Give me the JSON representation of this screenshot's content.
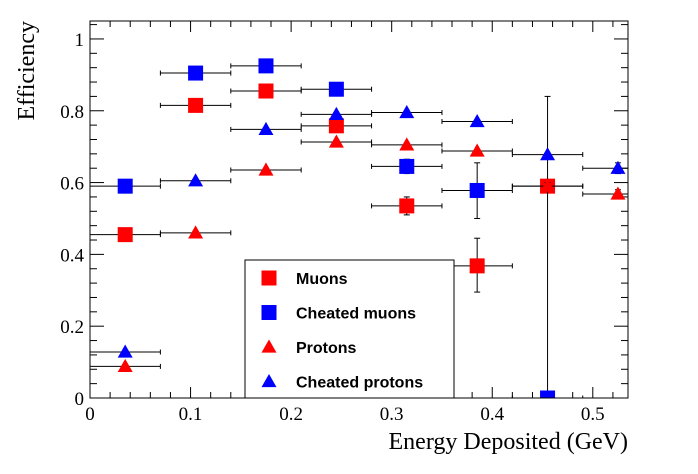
{
  "chart_data": {
    "type": "scatter",
    "title": "",
    "xlabel": "Energy Deposited (GeV)",
    "ylabel": "Efficiency",
    "xlim": [
      0,
      0.535
    ],
    "ylim": [
      0,
      1.05
    ],
    "x_ticks": [
      {
        "value": 0,
        "label": "0"
      },
      {
        "value": 0.1,
        "label": "0.1"
      },
      {
        "value": 0.2,
        "label": "0.2"
      },
      {
        "value": 0.3,
        "label": "0.3"
      },
      {
        "value": 0.4,
        "label": "0.4"
      },
      {
        "value": 0.5,
        "label": "0.5"
      }
    ],
    "y_ticks": [
      {
        "value": 0,
        "label": "0"
      },
      {
        "value": 0.2,
        "label": "0.2"
      },
      {
        "value": 0.4,
        "label": "0.4"
      },
      {
        "value": 0.6,
        "label": "0.6"
      },
      {
        "value": 0.8,
        "label": "0.8"
      },
      {
        "value": 1,
        "label": "1"
      }
    ],
    "grid": false,
    "legend": {
      "position": "bottom-center"
    },
    "series": [
      {
        "name": "Muons",
        "marker": "square",
        "color": "#ff0000",
        "points": [
          {
            "x": 0.035,
            "xlo": 0.0,
            "xhi": 0.07,
            "y": 0.455,
            "ylo": 0.45,
            "yhi": 0.46
          },
          {
            "x": 0.105,
            "xlo": 0.07,
            "xhi": 0.14,
            "y": 0.815,
            "ylo": 0.81,
            "yhi": 0.82
          },
          {
            "x": 0.175,
            "xlo": 0.14,
            "xhi": 0.21,
            "y": 0.855,
            "ylo": 0.85,
            "yhi": 0.86
          },
          {
            "x": 0.245,
            "xlo": 0.21,
            "xhi": 0.28,
            "y": 0.758,
            "ylo": 0.745,
            "yhi": 0.77
          },
          {
            "x": 0.315,
            "xlo": 0.28,
            "xhi": 0.35,
            "y": 0.535,
            "ylo": 0.51,
            "yhi": 0.56
          },
          {
            "x": 0.385,
            "xlo": 0.35,
            "xhi": 0.42,
            "y": 0.368,
            "ylo": 0.295,
            "yhi": 0.445
          },
          {
            "x": 0.455,
            "xlo": 0.42,
            "xhi": 0.49,
            "y": 0.59,
            "ylo": 0.575,
            "yhi": 0.605
          }
        ]
      },
      {
        "name": "Cheated muons",
        "marker": "square",
        "color": "#0000ff",
        "points": [
          {
            "x": 0.035,
            "xlo": 0.0,
            "xhi": 0.07,
            "y": 0.59,
            "ylo": 0.585,
            "yhi": 0.595
          },
          {
            "x": 0.105,
            "xlo": 0.07,
            "xhi": 0.14,
            "y": 0.905,
            "ylo": 0.9,
            "yhi": 0.91
          },
          {
            "x": 0.175,
            "xlo": 0.14,
            "xhi": 0.21,
            "y": 0.925,
            "ylo": 0.92,
            "yhi": 0.93
          },
          {
            "x": 0.245,
            "xlo": 0.21,
            "xhi": 0.28,
            "y": 0.86,
            "ylo": 0.85,
            "yhi": 0.87
          },
          {
            "x": 0.315,
            "xlo": 0.28,
            "xhi": 0.35,
            "y": 0.645,
            "ylo": 0.625,
            "yhi": 0.665
          },
          {
            "x": 0.385,
            "xlo": 0.35,
            "xhi": 0.42,
            "y": 0.578,
            "ylo": 0.5,
            "yhi": 0.655
          },
          {
            "x": 0.455,
            "xlo": 0.42,
            "xhi": 0.49,
            "y": 0.0,
            "ylo": 0.0,
            "yhi": 0.84
          }
        ]
      },
      {
        "name": "Protons",
        "marker": "triangle",
        "color": "#ff0000",
        "points": [
          {
            "x": 0.035,
            "xlo": 0.0,
            "xhi": 0.07,
            "y": 0.088,
            "ylo": 0.083,
            "yhi": 0.093
          },
          {
            "x": 0.105,
            "xlo": 0.07,
            "xhi": 0.14,
            "y": 0.46,
            "ylo": 0.455,
            "yhi": 0.465
          },
          {
            "x": 0.175,
            "xlo": 0.14,
            "xhi": 0.21,
            "y": 0.635,
            "ylo": 0.63,
            "yhi": 0.64
          },
          {
            "x": 0.245,
            "xlo": 0.21,
            "xhi": 0.28,
            "y": 0.713,
            "ylo": 0.708,
            "yhi": 0.718
          },
          {
            "x": 0.315,
            "xlo": 0.28,
            "xhi": 0.35,
            "y": 0.705,
            "ylo": 0.7,
            "yhi": 0.71
          },
          {
            "x": 0.385,
            "xlo": 0.35,
            "xhi": 0.42,
            "y": 0.688,
            "ylo": 0.68,
            "yhi": 0.696
          },
          {
            "x": 0.455,
            "xlo": 0.42,
            "xhi": 0.49,
            "y": 0.59,
            "ylo": 0.58,
            "yhi": 0.6
          },
          {
            "x": 0.525,
            "xlo": 0.49,
            "xhi": 0.56,
            "y": 0.568,
            "ylo": 0.555,
            "yhi": 0.58
          }
        ]
      },
      {
        "name": "Cheated protons",
        "marker": "triangle",
        "color": "#0000ff",
        "points": [
          {
            "x": 0.035,
            "xlo": 0.0,
            "xhi": 0.07,
            "y": 0.128,
            "ylo": 0.123,
            "yhi": 0.133
          },
          {
            "x": 0.105,
            "xlo": 0.07,
            "xhi": 0.14,
            "y": 0.605,
            "ylo": 0.6,
            "yhi": 0.61
          },
          {
            "x": 0.175,
            "xlo": 0.14,
            "xhi": 0.21,
            "y": 0.748,
            "ylo": 0.743,
            "yhi": 0.753
          },
          {
            "x": 0.245,
            "xlo": 0.21,
            "xhi": 0.28,
            "y": 0.79,
            "ylo": 0.785,
            "yhi": 0.795
          },
          {
            "x": 0.315,
            "xlo": 0.28,
            "xhi": 0.35,
            "y": 0.795,
            "ylo": 0.79,
            "yhi": 0.8
          },
          {
            "x": 0.385,
            "xlo": 0.35,
            "xhi": 0.42,
            "y": 0.77,
            "ylo": 0.762,
            "yhi": 0.778
          },
          {
            "x": 0.455,
            "xlo": 0.42,
            "xhi": 0.49,
            "y": 0.678,
            "ylo": 0.668,
            "yhi": 0.688
          },
          {
            "x": 0.525,
            "xlo": 0.49,
            "xhi": 0.56,
            "y": 0.64,
            "ylo": 0.625,
            "yhi": 0.655
          }
        ]
      }
    ]
  }
}
